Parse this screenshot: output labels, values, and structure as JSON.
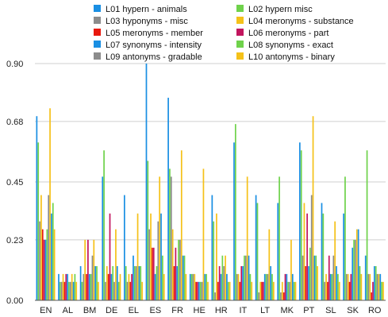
{
  "chart_data": {
    "type": "bar",
    "categories": [
      "EN",
      "AL",
      "BM",
      "DE",
      "EL",
      "ES",
      "FR",
      "HE",
      "HR",
      "IT",
      "LT",
      "MK",
      "PT",
      "SL",
      "SK",
      "RO"
    ],
    "ylim": [
      0,
      0.9
    ],
    "yticks": [
      0.0,
      0.23,
      0.45,
      0.68,
      0.9
    ],
    "ytick_labels": [
      "0.00",
      "0.23",
      "0.45",
      "0.68",
      "0.90"
    ],
    "grid": "horizontal",
    "legend_position": "top",
    "series": [
      {
        "name": "L01 hypern - animals",
        "color": "#1a8fe3",
        "values": [
          0.7,
          0.1,
          0.13,
          0.47,
          0.4,
          0.9,
          0.77,
          0.1,
          0.4,
          0.6,
          0.4,
          0.37,
          0.6,
          0.37,
          0.33,
          0.17
        ]
      },
      {
        "name": "L02 hypern misc",
        "color": "#6fd24b",
        "values": [
          0.6,
          0.07,
          0.07,
          0.57,
          0.13,
          0.53,
          0.5,
          0.1,
          0.3,
          0.67,
          0.37,
          0.47,
          0.57,
          0.33,
          0.47,
          0.57
        ]
      },
      {
        "name": "L03 hyponyms - misc",
        "color": "#8c8c8c",
        "values": [
          0.3,
          0.07,
          0.1,
          0.07,
          0.07,
          0.27,
          0.47,
          0.1,
          0.03,
          0.1,
          0.03,
          0.03,
          0.17,
          0.07,
          0.1,
          0.1
        ]
      },
      {
        "name": "L04 meronyms - substance",
        "color": "#f5c119",
        "values": [
          0.4,
          0.1,
          0.23,
          0.13,
          0.1,
          0.33,
          0.27,
          0.1,
          0.33,
          0.1,
          0.07,
          0.07,
          0.37,
          0.1,
          0.1,
          0.1
        ]
      },
      {
        "name": "L05 meronyms - member",
        "color": "#e8190e",
        "values": [
          0.27,
          0.07,
          0.1,
          0.1,
          0.07,
          0.2,
          0.13,
          0.07,
          0.07,
          0.07,
          0.07,
          0.03,
          0.13,
          0.07,
          0.07,
          0.03
        ]
      },
      {
        "name": "L06 meronyms - part",
        "color": "#c2155e",
        "values": [
          0.23,
          0.1,
          0.23,
          0.33,
          0.1,
          0.2,
          0.2,
          0.07,
          0.13,
          0.13,
          0.07,
          0.1,
          0.33,
          0.17,
          0.1,
          0.07
        ]
      },
      {
        "name": "L07 synonyms - intensity",
        "color": "#1a8fe3",
        "values": [
          0.23,
          0.1,
          0.1,
          0.1,
          0.17,
          0.1,
          0.13,
          0.07,
          0.1,
          0.13,
          0.1,
          0.1,
          0.13,
          0.1,
          0.2,
          0.13
        ]
      },
      {
        "name": "L08 synonyms - exact",
        "color": "#6fd24b",
        "values": [
          0.27,
          0.07,
          0.1,
          0.13,
          0.13,
          0.13,
          0.23,
          0.07,
          0.17,
          0.17,
          0.1,
          0.07,
          0.2,
          0.1,
          0.23,
          0.13
        ]
      },
      {
        "name": "L09 antonyms - gradable",
        "color": "#8c8c8c",
        "values": [
          0.4,
          0.07,
          0.17,
          0.07,
          0.13,
          0.3,
          0.23,
          0.07,
          0.13,
          0.17,
          0.1,
          0.07,
          0.4,
          0.17,
          0.23,
          0.1
        ]
      },
      {
        "name": "L10 antonyms - binary",
        "color": "#f5c119",
        "values": [
          0.73,
          0.1,
          0.23,
          0.27,
          0.33,
          0.47,
          0.57,
          0.5,
          0.17,
          0.47,
          0.27,
          0.23,
          0.7,
          0.3,
          0.27,
          0.1
        ]
      },
      {
        "name": "",
        "color": "#1a8fe3",
        "values": [
          0.33,
          0.07,
          0.13,
          0.13,
          0.13,
          0.33,
          0.17,
          0.1,
          0.1,
          0.17,
          0.13,
          0.1,
          0.17,
          0.13,
          0.27,
          0.1
        ]
      },
      {
        "name": "",
        "color": "#6fd24b",
        "values": [
          0.37,
          0.1,
          0.13,
          0.07,
          0.13,
          0.17,
          0.17,
          0.1,
          0.07,
          0.1,
          0.1,
          0.07,
          0.17,
          0.1,
          0.13,
          0.07
        ]
      },
      {
        "name": "",
        "color": "#f5c119",
        "values": [
          0.27,
          0.07,
          0.07,
          0.1,
          0.07,
          0.1,
          0.1,
          0.07,
          0.07,
          0.07,
          0.07,
          0.07,
          0.13,
          0.07,
          0.1,
          0.07
        ]
      }
    ]
  }
}
